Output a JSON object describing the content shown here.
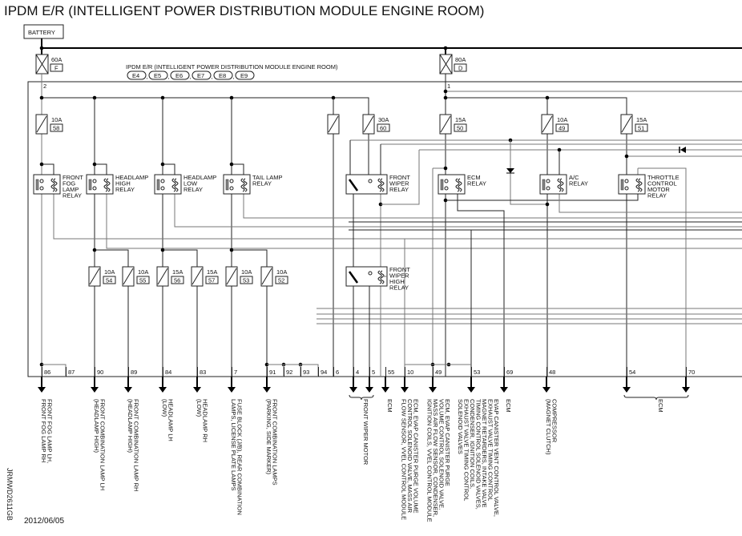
{
  "title": "IPDM E/R (INTELLIGENT POWER DISTRIBUTION MODULE ENGINE ROOM)",
  "battery": "BATTERY",
  "module_label": "IPDM E/R (INTELLIGENT POWER DISTRIBUTION MODULE ENGINE ROOM)",
  "connectors": [
    "E4",
    "E5",
    "E6",
    "E7",
    "E8",
    "E9"
  ],
  "main_fuses": [
    {
      "rating": "60A",
      "id": "F",
      "pin": "2"
    },
    {
      "rating": "80A",
      "id": "D",
      "pin": "1"
    }
  ],
  "fuses_upper": [
    {
      "rating": "10A",
      "id": "58"
    },
    {
      "rating": "",
      "id": ""
    },
    {
      "rating": "30A",
      "id": "60"
    },
    {
      "rating": "15A",
      "id": "50"
    },
    {
      "rating": "10A",
      "id": "49"
    },
    {
      "rating": "15A",
      "id": "51"
    }
  ],
  "fuses_lower": [
    {
      "rating": "10A",
      "id": "54"
    },
    {
      "rating": "10A",
      "id": "55"
    },
    {
      "rating": "15A",
      "id": "56"
    },
    {
      "rating": "15A",
      "id": "57"
    },
    {
      "rating": "10A",
      "id": "53"
    },
    {
      "rating": "10A",
      "id": "52"
    }
  ],
  "relays": [
    [
      "FRONT",
      "FOG",
      "LAMP",
      "RELAY"
    ],
    [
      "HEADLAMP",
      "HIGH",
      "RELAY"
    ],
    [
      "HEADLAMP",
      "LOW",
      "RELAY"
    ],
    [
      "TAIL LAMP",
      "RELAY"
    ],
    [
      "FRONT",
      "WIPER",
      "RELAY"
    ],
    [
      "ECM",
      "RELAY"
    ],
    [
      "A/C",
      "RELAY"
    ],
    [
      "THROTTLE",
      "CONTROL",
      "MOTOR",
      "RELAY"
    ],
    [
      "FRONT",
      "WIPER",
      "HIGH",
      "RELAY"
    ]
  ],
  "terminals": [
    "86",
    "87",
    "90",
    "89",
    "84",
    "83",
    "7",
    "91",
    "92",
    "93",
    "94",
    "6",
    "4",
    "5",
    "55",
    "10",
    "49",
    "53",
    "69",
    "48",
    "54",
    "70"
  ],
  "outputs": [
    [
      "FRONT FOG LAMP LH,",
      "FRONT FOG LAMP RH"
    ],
    [
      "FRONT COMBINATION LAMP LH",
      "(HEADLAMP HIGH)"
    ],
    [
      "FRONT COMBINATION LAMP RH",
      "(HEADLAMP HIGH)"
    ],
    [
      "HEADLAMP LH",
      "(LOW)"
    ],
    [
      "HEADLAMP RH",
      "(LOW)"
    ],
    [
      "FUSE BLOCK (J/B), REAR COMBINATION",
      "LAMPS, LICENSE PLATE LAMPS"
    ],
    [
      "FRONT COMBINATION LAMPS",
      "(PARKING, SIDE MARKER)"
    ],
    [
      "FRONT WIPER MOTOR"
    ],
    [
      "ECM"
    ],
    [
      "ECM, EVAP CANISTER PURGE VOLUME",
      "CONTROL SOLENOID VALVE, MASS AIR",
      "FLOW SENSOR, VVEL CONTROL MODULE"
    ],
    [
      "ECM, EVAP CANISTER PURGE",
      "VOLUME CONTROL SOLENOID VALVE,",
      "MASS AIR FLOW SENSOR, CONDENSER,",
      "IGNITION COILS, VVEL CONTROL MODULE"
    ],
    [
      "EVAP CANISTER VENT CONTROL VALVE,",
      "EXHAUST VALVE TIMING CONTROL",
      "MAGNET RETARDERS, INTAKE VALVE",
      "TIMING CONTROL SOLENOID VALVES,",
      "CONDENSER, IGNITION COILS,",
      "EXHAUST VALVE TIMING CONTROL",
      "SOLENOID VALVES"
    ],
    [
      "ECM"
    ],
    [
      "COMPRESSOR",
      "(MAGNET CLUTCH)"
    ],
    [
      "ECM"
    ]
  ],
  "date": "2012/06/05",
  "code": "JRMWD2611GB"
}
